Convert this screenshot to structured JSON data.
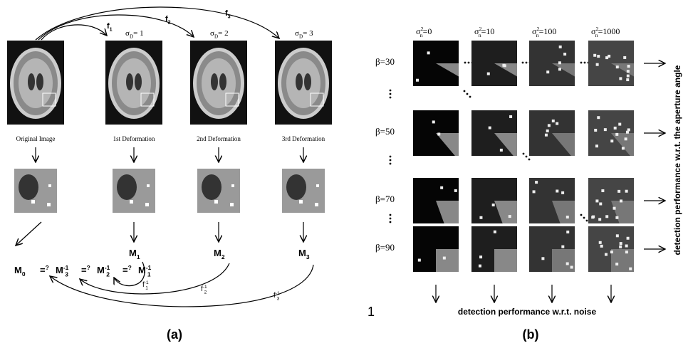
{
  "panel_a": {
    "caption": "(a)",
    "forward_maps": [
      {
        "base": "f",
        "sub": "1"
      },
      {
        "base": "f",
        "sub": "2"
      },
      {
        "base": "f",
        "sub": "3"
      }
    ],
    "sigmas": [
      {
        "base": "σ",
        "sub": "D",
        "value": "= 1"
      },
      {
        "base": "σ",
        "sub": "D",
        "value": "= 2"
      },
      {
        "base": "σ",
        "sub": "D",
        "value": "= 3"
      }
    ],
    "image_labels": [
      "Original Image",
      "1st Deformation",
      "2nd Deformation",
      "3rd Deformation"
    ],
    "models": [
      {
        "base": "M",
        "sub": "1"
      },
      {
        "base": "M",
        "sub": "2"
      },
      {
        "base": "M",
        "sub": "3"
      }
    ],
    "equation": [
      {
        "base": "M",
        "sub": "0"
      },
      {
        "base": "=",
        "sup": "?"
      },
      {
        "base": "M",
        "sup": "-1",
        "sub": "3"
      },
      {
        "base": "=",
        "sup": "?"
      },
      {
        "base": "M",
        "sup": "-1",
        "sub": "2"
      },
      {
        "base": "=",
        "sup": "?"
      },
      {
        "base": "M",
        "sup": "-1",
        "sub": "1"
      }
    ],
    "inverse_maps": [
      {
        "base": "f",
        "sub": "1",
        "sup": "-1"
      },
      {
        "base": "f",
        "sub": "2",
        "sup": "-1"
      },
      {
        "base": "f",
        "sub": "3",
        "sup": "-1"
      }
    ]
  },
  "panel_b": {
    "caption": "(b)",
    "noise_labels": [
      {
        "base": "σ",
        "sup": "2",
        "sub": "n",
        "value": "=0"
      },
      {
        "base": "σ",
        "sup": "2",
        "sub": "n",
        "value": "=10"
      },
      {
        "base": "σ",
        "sup": "2",
        "sub": "n",
        "value": "=100"
      },
      {
        "base": "σ",
        "sup": "2",
        "sub": "n",
        "value": "=1000"
      }
    ],
    "beta_labels": [
      "β=30",
      "β=50",
      "β=70",
      "β=90"
    ],
    "x_label": "detection performance w.r.t. noise",
    "y_label": "detection performance w.r.t. the aperture angle",
    "stray_mark": "1"
  }
}
